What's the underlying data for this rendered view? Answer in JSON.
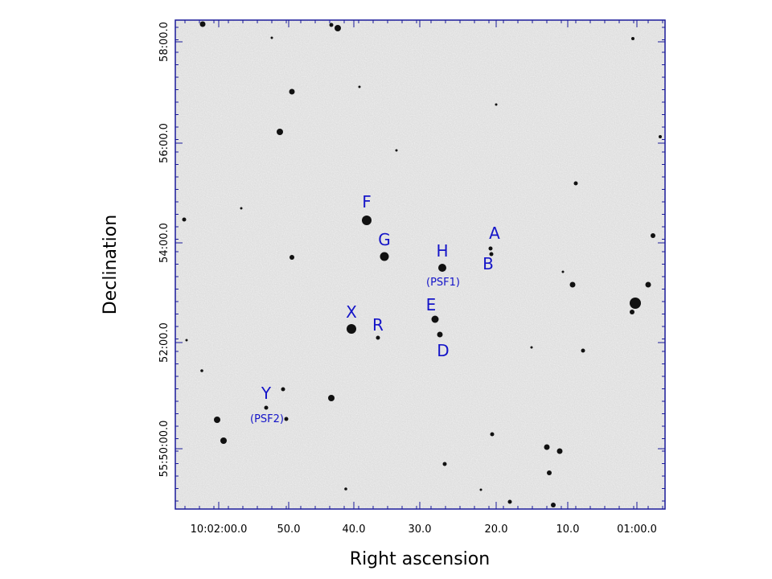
{
  "figure": {
    "xlabel": "Right ascension",
    "ylabel": "Declination",
    "x_ticks": [
      "10:02:00.0",
      "50.0",
      "40.0",
      "30.0",
      "20.0",
      "10.0",
      "01:00.0"
    ],
    "y_ticks": [
      "58:00.0",
      "56:00.0",
      "54:00.0",
      "52:00.0",
      "55:50:00.0"
    ],
    "frame_color": "#1a1a9a",
    "label_color": "#1414c8"
  },
  "labels": [
    {
      "id": "F",
      "text": "F"
    },
    {
      "id": "G",
      "text": "G"
    },
    {
      "id": "H",
      "text": "H"
    },
    {
      "id": "PSF1",
      "text": "(PSF1)"
    },
    {
      "id": "A",
      "text": "A"
    },
    {
      "id": "B",
      "text": "B"
    },
    {
      "id": "E",
      "text": "E"
    },
    {
      "id": "D",
      "text": "D"
    },
    {
      "id": "X",
      "text": "X"
    },
    {
      "id": "R",
      "text": "R"
    },
    {
      "id": "Y",
      "text": "Y"
    },
    {
      "id": "PSF2",
      "text": "(PSF2)"
    }
  ]
}
